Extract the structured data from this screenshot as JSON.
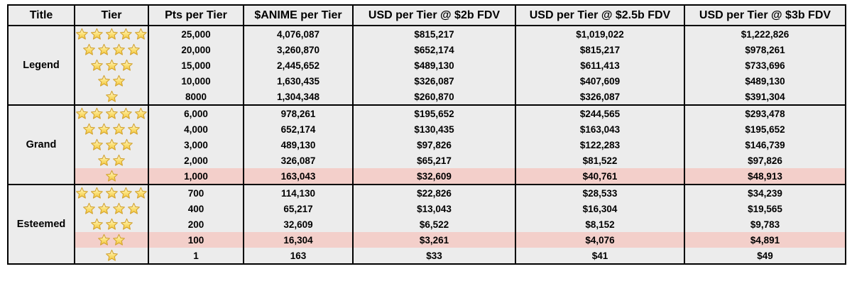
{
  "table": {
    "columns": [
      "Title",
      "Tier",
      "Pts per Tier",
      "$ANIME per Tier",
      "USD per Tier @ $2b FDV",
      "USD per Tier @ $2.5b FDV",
      "USD per Tier @ $3b FDV"
    ],
    "groups": [
      {
        "title": "Legend",
        "rows": [
          {
            "stars": 5,
            "pts": "25,000",
            "anime": "4,076,087",
            "usd_2b": "$815,217",
            "usd_2_5b": "$1,019,022",
            "usd_3b": "$1,222,826",
            "highlight": false
          },
          {
            "stars": 4,
            "pts": "20,000",
            "anime": "3,260,870",
            "usd_2b": "$652,174",
            "usd_2_5b": "$815,217",
            "usd_3b": "$978,261",
            "highlight": false
          },
          {
            "stars": 3,
            "pts": "15,000",
            "anime": "2,445,652",
            "usd_2b": "$489,130",
            "usd_2_5b": "$611,413",
            "usd_3b": "$733,696",
            "highlight": false
          },
          {
            "stars": 2,
            "pts": "10,000",
            "anime": "1,630,435",
            "usd_2b": "$326,087",
            "usd_2_5b": "$407,609",
            "usd_3b": "$489,130",
            "highlight": false
          },
          {
            "stars": 1,
            "pts": "8000",
            "anime": "1,304,348",
            "usd_2b": "$260,870",
            "usd_2_5b": "$326,087",
            "usd_3b": "$391,304",
            "highlight": false
          }
        ]
      },
      {
        "title": "Grand",
        "rows": [
          {
            "stars": 5,
            "pts": "6,000",
            "anime": "978,261",
            "usd_2b": "$195,652",
            "usd_2_5b": "$244,565",
            "usd_3b": "$293,478",
            "highlight": false
          },
          {
            "stars": 4,
            "pts": "4,000",
            "anime": "652,174",
            "usd_2b": "$130,435",
            "usd_2_5b": "$163,043",
            "usd_3b": "$195,652",
            "highlight": false
          },
          {
            "stars": 3,
            "pts": "3,000",
            "anime": "489,130",
            "usd_2b": "$97,826",
            "usd_2_5b": "$122,283",
            "usd_3b": "$146,739",
            "highlight": false
          },
          {
            "stars": 2,
            "pts": "2,000",
            "anime": "326,087",
            "usd_2b": "$65,217",
            "usd_2_5b": "$81,522",
            "usd_3b": "$97,826",
            "highlight": false
          },
          {
            "stars": 1,
            "pts": "1,000",
            "anime": "163,043",
            "usd_2b": "$32,609",
            "usd_2_5b": "$40,761",
            "usd_3b": "$48,913",
            "highlight": true
          }
        ]
      },
      {
        "title": "Esteemed",
        "rows": [
          {
            "stars": 5,
            "pts": "700",
            "anime": "114,130",
            "usd_2b": "$22,826",
            "usd_2_5b": "$28,533",
            "usd_3b": "$34,239",
            "highlight": false
          },
          {
            "stars": 4,
            "pts": "400",
            "anime": "65,217",
            "usd_2b": "$13,043",
            "usd_2_5b": "$16,304",
            "usd_3b": "$19,565",
            "highlight": false
          },
          {
            "stars": 3,
            "pts": "200",
            "anime": "32,609",
            "usd_2b": "$6,522",
            "usd_2_5b": "$8,152",
            "usd_3b": "$9,783",
            "highlight": false
          },
          {
            "stars": 2,
            "pts": "100",
            "anime": "16,304",
            "usd_2b": "$3,261",
            "usd_2_5b": "$4,076",
            "usd_3b": "$4,891",
            "highlight": true
          },
          {
            "stars": 1,
            "pts": "1",
            "anime": "163",
            "usd_2b": "$33",
            "usd_2_5b": "$41",
            "usd_3b": "$49",
            "highlight": false
          }
        ]
      }
    ],
    "colors": {
      "cell_bg": "#ececec",
      "highlight_bg": "#f3cfca",
      "border": "#000000",
      "star_fill_top": "#fffbe6",
      "star_fill_mid": "#fbe27a",
      "star_fill_bottom": "#f2c23a",
      "star_stroke": "#d2a22e"
    },
    "icons": {
      "tier_icon": "star-icon"
    }
  }
}
